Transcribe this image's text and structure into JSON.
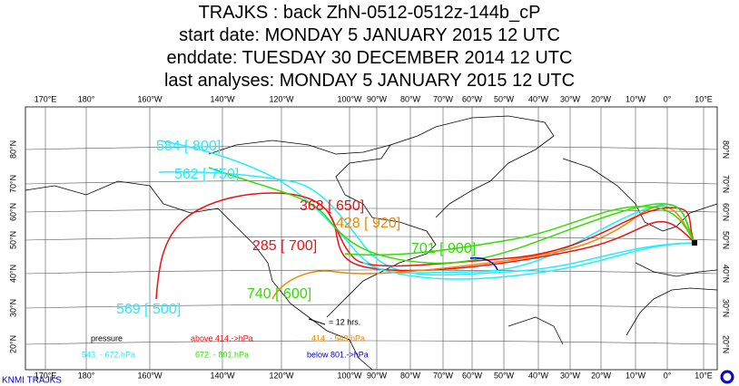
{
  "header": {
    "lines": [
      "TRAJKS : back ZhN-0512-0512z-144b_cP",
      "start date:  MONDAY     5 JANUARY   2015 12 UTC",
      "enddate:  TUESDAY   30 DECEMBER  2014 12 UTC",
      "last analyses:  MONDAY     5 JANUARY   2015 12 UTC"
    ]
  },
  "map": {
    "lon_labels": [
      "170°E",
      "180°",
      "160°W",
      "140°W",
      "120°W",
      "100°W",
      "90°W",
      "80°W",
      "70°W",
      "60°W",
      "50°W",
      "40°W",
      "30°W",
      "20°W",
      "10°W",
      "0°",
      "10°E"
    ],
    "lat_labels": [
      "80°N",
      "70°N",
      "60°N",
      "50°N",
      "40°N",
      "30°N",
      "20°N"
    ]
  },
  "trajectories": [
    {
      "label": "584 [ 800]",
      "color": "#22eeff"
    },
    {
      "label": "562 [ 750]",
      "color": "#22eeff"
    },
    {
      "label": "368 [ 650]",
      "color": "#ee1111"
    },
    {
      "label": "428 [ 920]",
      "color": "#ee8800"
    },
    {
      "label": "285 [ 700]",
      "color": "#ee1111"
    },
    {
      "label": "740 [ 600]",
      "color": "#33dd00"
    },
    {
      "label": "569 [ 500]",
      "color": "#22eeff"
    },
    {
      "label": "701 [ 900]",
      "color": "#33dd00"
    }
  ],
  "legend": {
    "title": "pressure",
    "timestep": "= 12 hrs.",
    "entries": [
      {
        "label": "above  414.->hPa",
        "color": "#ee1111"
      },
      {
        "label": "414. -    543.hPa",
        "color": "#ee8800"
      },
      {
        "label": "543. -    672.hPa",
        "color": "#22eeff"
      },
      {
        "label": "672. -    801.hPa",
        "color": "#33dd00"
      },
      {
        "label": "below  801.->hPa",
        "color": "#0000cc"
      }
    ]
  },
  "footer": "KNMI TRAJKS"
}
